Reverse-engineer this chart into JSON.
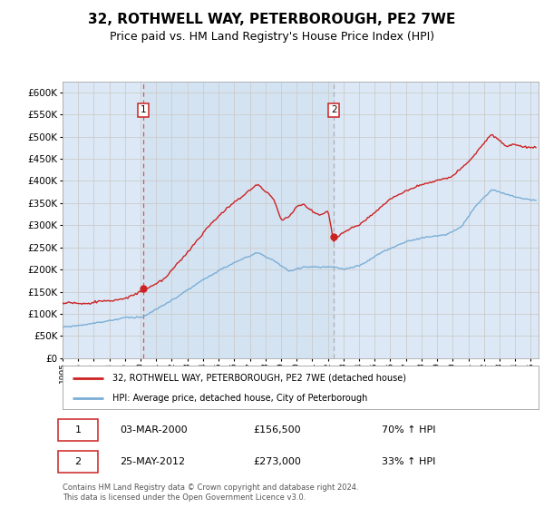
{
  "title": "32, ROTHWELL WAY, PETERBOROUGH, PE2 7WE",
  "subtitle": "Price paid vs. HM Land Registry's House Price Index (HPI)",
  "title_fontsize": 11,
  "subtitle_fontsize": 9,
  "plot_bg_color": "#dce8f5",
  "sale1_x": 2000.17,
  "sale1_y": 156500,
  "sale2_x": 2012.38,
  "sale2_y": 273000,
  "legend_line1": "32, ROTHWELL WAY, PETERBOROUGH, PE2 7WE (detached house)",
  "legend_line2": "HPI: Average price, detached house, City of Peterborough",
  "table_row1": [
    "1",
    "03-MAR-2000",
    "£156,500",
    "70% ↑ HPI"
  ],
  "table_row2": [
    "2",
    "25-MAY-2012",
    "£273,000",
    "33% ↑ HPI"
  ],
  "footer": "Contains HM Land Registry data © Crown copyright and database right 2024.\nThis data is licensed under the Open Government Licence v3.0.",
  "property_color": "#cc2222",
  "hpi_color": "#7aaed6",
  "ylim": [
    0,
    625000
  ],
  "yticks": [
    0,
    50000,
    100000,
    150000,
    200000,
    250000,
    300000,
    350000,
    400000,
    450000,
    500000,
    550000,
    600000
  ],
  "grid_color": "#cccccc",
  "vline1_color": "#dd4444",
  "vline2_color": "#aaaaaa",
  "xmin": 1995,
  "xmax": 2025.5
}
